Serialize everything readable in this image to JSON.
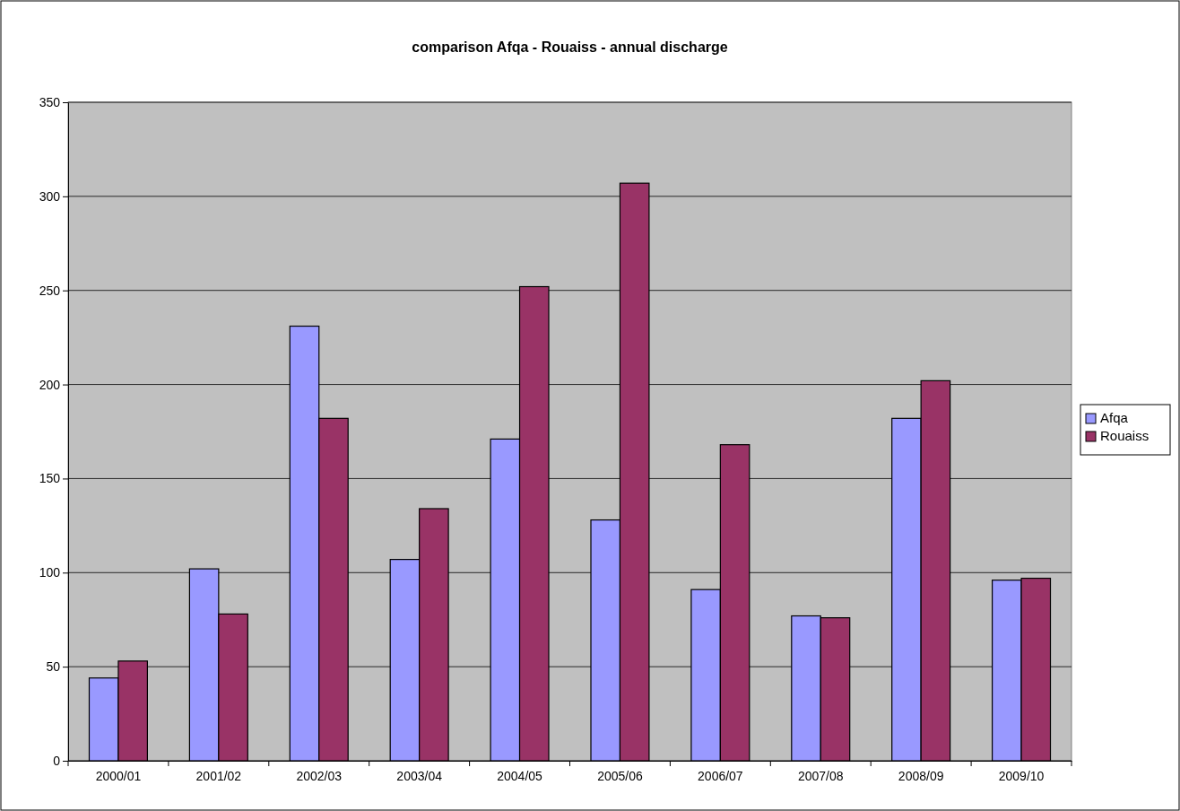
{
  "chart_data": {
    "type": "bar",
    "title": "comparison Afqa - Rouaiss - annual discharge",
    "categories": [
      "2000/01",
      "2001/02",
      "2002/03",
      "2003/04",
      "2004/05",
      "2005/06",
      "2006/07",
      "2007/08",
      "2008/09",
      "2009/10"
    ],
    "series": [
      {
        "name": "Afqa",
        "color": "#9999ff",
        "values": [
          44,
          102,
          231,
          107,
          171,
          128,
          91,
          77,
          182,
          96
        ]
      },
      {
        "name": "Rouaiss",
        "color": "#993366",
        "values": [
          53,
          78,
          182,
          134,
          252,
          307,
          168,
          76,
          202,
          97
        ]
      }
    ],
    "ylim": [
      0,
      350
    ],
    "yticks": [
      0,
      50,
      100,
      150,
      200,
      250,
      300,
      350
    ],
    "grid": "y",
    "legend": "right"
  }
}
